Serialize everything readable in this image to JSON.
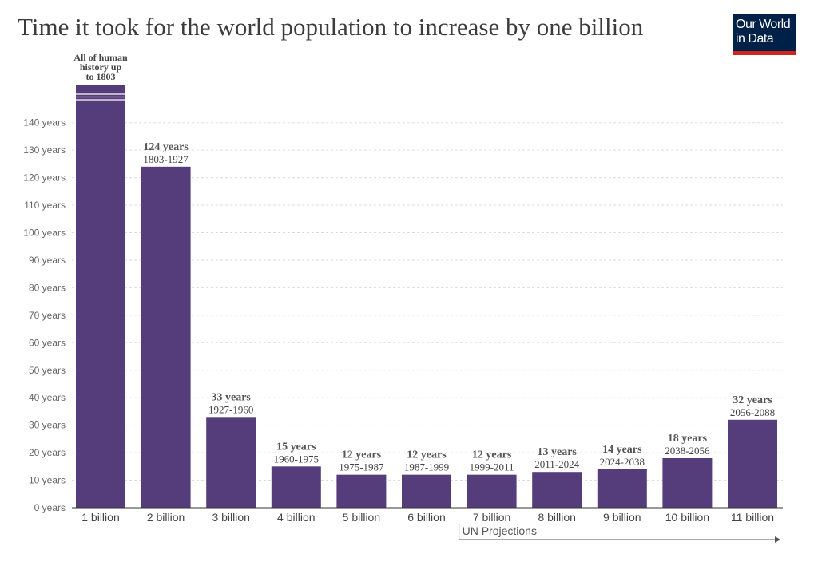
{
  "title": "Time it took for the world population to increase by one billion",
  "logo": {
    "line1": "Our World",
    "line2": "in Data"
  },
  "projection_label": "UN Projections",
  "colors": {
    "bar": "#553c7b",
    "logo_bg": "#002147",
    "logo_accent": "#ce261e"
  },
  "chart_data": {
    "type": "bar",
    "title": "Time it took for the world population to increase by one billion",
    "xlabel": "",
    "ylabel": "",
    "ylim": [
      0,
      150
    ],
    "yticks": [
      0,
      10,
      20,
      30,
      40,
      50,
      60,
      70,
      80,
      90,
      100,
      110,
      120,
      130,
      140
    ],
    "ytick_suffix": " years",
    "categories": [
      "1 billion",
      "2 billion",
      "3 billion",
      "4 billion",
      "5 billion",
      "6 billion",
      "7 billion",
      "8 billion",
      "9 billion",
      "10 billion",
      "11 billion"
    ],
    "values": [
      150,
      124,
      33,
      15,
      12,
      12,
      12,
      13,
      14,
      18,
      32
    ],
    "value_labels": [
      "",
      "124 years",
      "33 years",
      "15 years",
      "12 years",
      "12 years",
      "12 years",
      "13 years",
      "14 years",
      "18 years",
      "32 years"
    ],
    "period_labels": [
      "",
      "1803-1927",
      "1927-1960",
      "1960-1975",
      "1975-1987",
      "1987-1999",
      "1999-2011",
      "2011-2024",
      "2024-2038",
      "2038-2056",
      "2056-2088"
    ],
    "first_bar_label": [
      "All of human",
      "history up",
      "to 1803"
    ],
    "first_bar_truncated": true,
    "projection_start_index": 6,
    "grid": true
  }
}
